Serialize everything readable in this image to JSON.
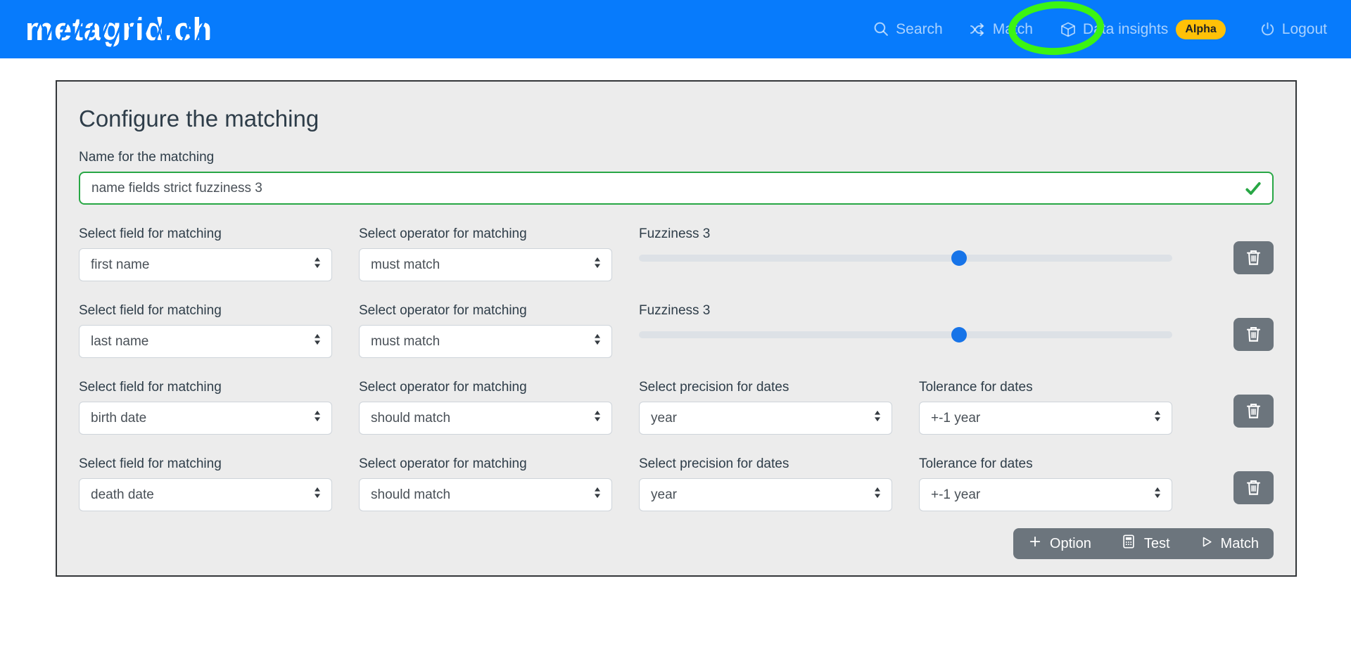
{
  "header": {
    "logo": "metagrid.ch",
    "nav": {
      "search": "Search",
      "match": "Match",
      "data_insights": "Data insights",
      "alpha_badge": "Alpha",
      "logout": "Logout"
    }
  },
  "form": {
    "title": "Configure the matching",
    "name": {
      "label": "Name for the matching",
      "value": "name fields strict fuzziness 3"
    },
    "rows": [
      {
        "field": {
          "label": "Select field for matching",
          "value": "first name"
        },
        "operator": {
          "label": "Select operator for matching",
          "value": "must match"
        },
        "fuzziness": {
          "label": "Fuzziness 3",
          "value": 3,
          "max": 5
        }
      },
      {
        "field": {
          "label": "Select field for matching",
          "value": "last name"
        },
        "operator": {
          "label": "Select operator for matching",
          "value": "must match"
        },
        "fuzziness": {
          "label": "Fuzziness 3",
          "value": 3,
          "max": 5
        }
      },
      {
        "field": {
          "label": "Select field for matching",
          "value": "birth date"
        },
        "operator": {
          "label": "Select operator for matching",
          "value": "should match"
        },
        "precision": {
          "label": "Select precision for dates",
          "value": "year"
        },
        "tolerance": {
          "label": "Tolerance for dates",
          "value": "+-1 year"
        }
      },
      {
        "field": {
          "label": "Select field for matching",
          "value": "death date"
        },
        "operator": {
          "label": "Select operator for matching",
          "value": "should match"
        },
        "precision": {
          "label": "Select precision for dates",
          "value": "year"
        },
        "tolerance": {
          "label": "Tolerance for dates",
          "value": "+-1 year"
        }
      }
    ],
    "actions": {
      "option": "Option",
      "test": "Test",
      "match": "Match"
    }
  },
  "colors": {
    "header_bg": "#077bfc",
    "card_bg": "#ececec",
    "valid_green": "#28a745",
    "annotation_green": "#3cf413",
    "slider_thumb_blue": "#1774e8",
    "button_gray": "#6c757d",
    "alpha_badge_bg": "#ffc107",
    "text_dark": "#2e3d49"
  }
}
